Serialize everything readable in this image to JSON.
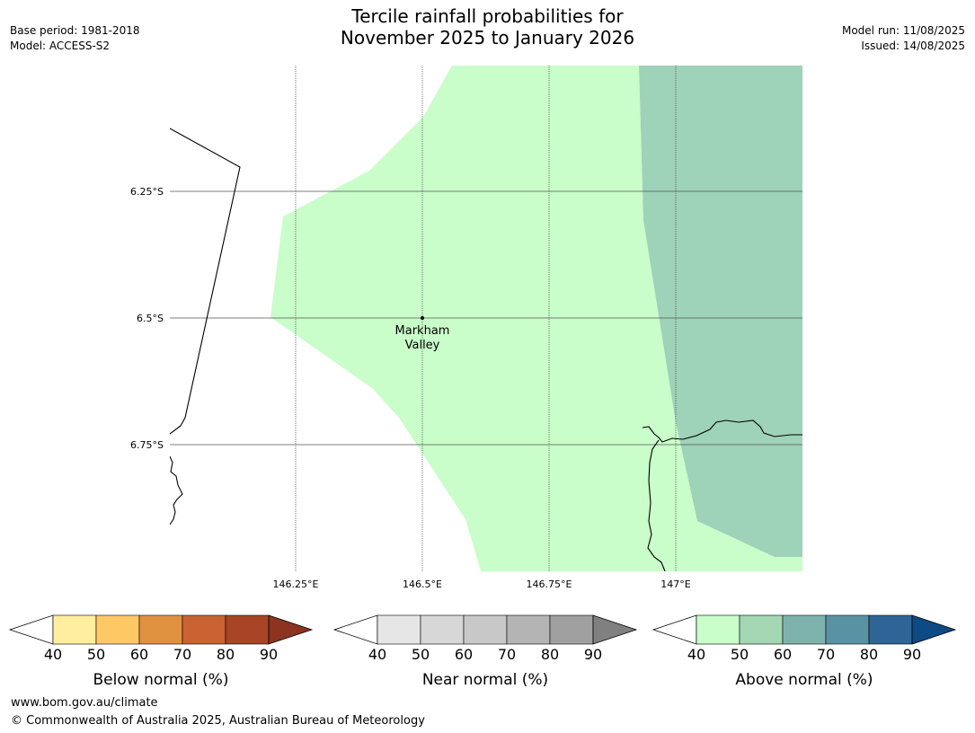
{
  "header": {
    "title_line1": "Tercile rainfall probabilities for",
    "title_line2": "November 2025 to January 2026",
    "base_period": "Base period: 1981-2018",
    "model": "Model: ACCESS-S2",
    "model_run": "Model run: 11/08/2025",
    "issued": "Issued: 14/08/2025"
  },
  "map": {
    "lat_labels": [
      "6.25°S",
      "6.5°S",
      "6.75°S"
    ],
    "lon_labels": [
      "146.25°E",
      "146.5°E",
      "146.75°E",
      "147°E"
    ],
    "place": {
      "name_line1": "Markham",
      "name_line2": "Valley"
    },
    "colors": {
      "above_40_50": "#c9fdc9",
      "above_50_60": "#9ed2b9",
      "coastline": "#000000",
      "gridline": "#555555"
    }
  },
  "colorbars": [
    {
      "title": "Below normal (%)",
      "ticks": [
        "40",
        "50",
        "60",
        "70",
        "80",
        "90"
      ],
      "colors": [
        "#ffeda0",
        "#fec965",
        "#e0913f",
        "#cb6232",
        "#a84526"
      ],
      "extend_color": "#8c3421"
    },
    {
      "title": "Near normal (%)",
      "ticks": [
        "40",
        "50",
        "60",
        "70",
        "80",
        "90"
      ],
      "colors": [
        "#e6e6e6",
        "#d7d7d7",
        "#c8c8c8",
        "#b4b4b4",
        "#a0a0a0"
      ],
      "extend_color": "#808080"
    },
    {
      "title": "Above normal (%)",
      "ticks": [
        "40",
        "50",
        "60",
        "70",
        "80",
        "90"
      ],
      "colors": [
        "#c9fdc9",
        "#a3d7b4",
        "#7eb3ad",
        "#5992a2",
        "#2f6496"
      ],
      "extend_color": "#0d4a86"
    }
  ],
  "footer": {
    "url": "www.bom.gov.au/climate",
    "copyright": "© Commonwealth of Australia 2025, Australian Bureau of Meteorology"
  }
}
